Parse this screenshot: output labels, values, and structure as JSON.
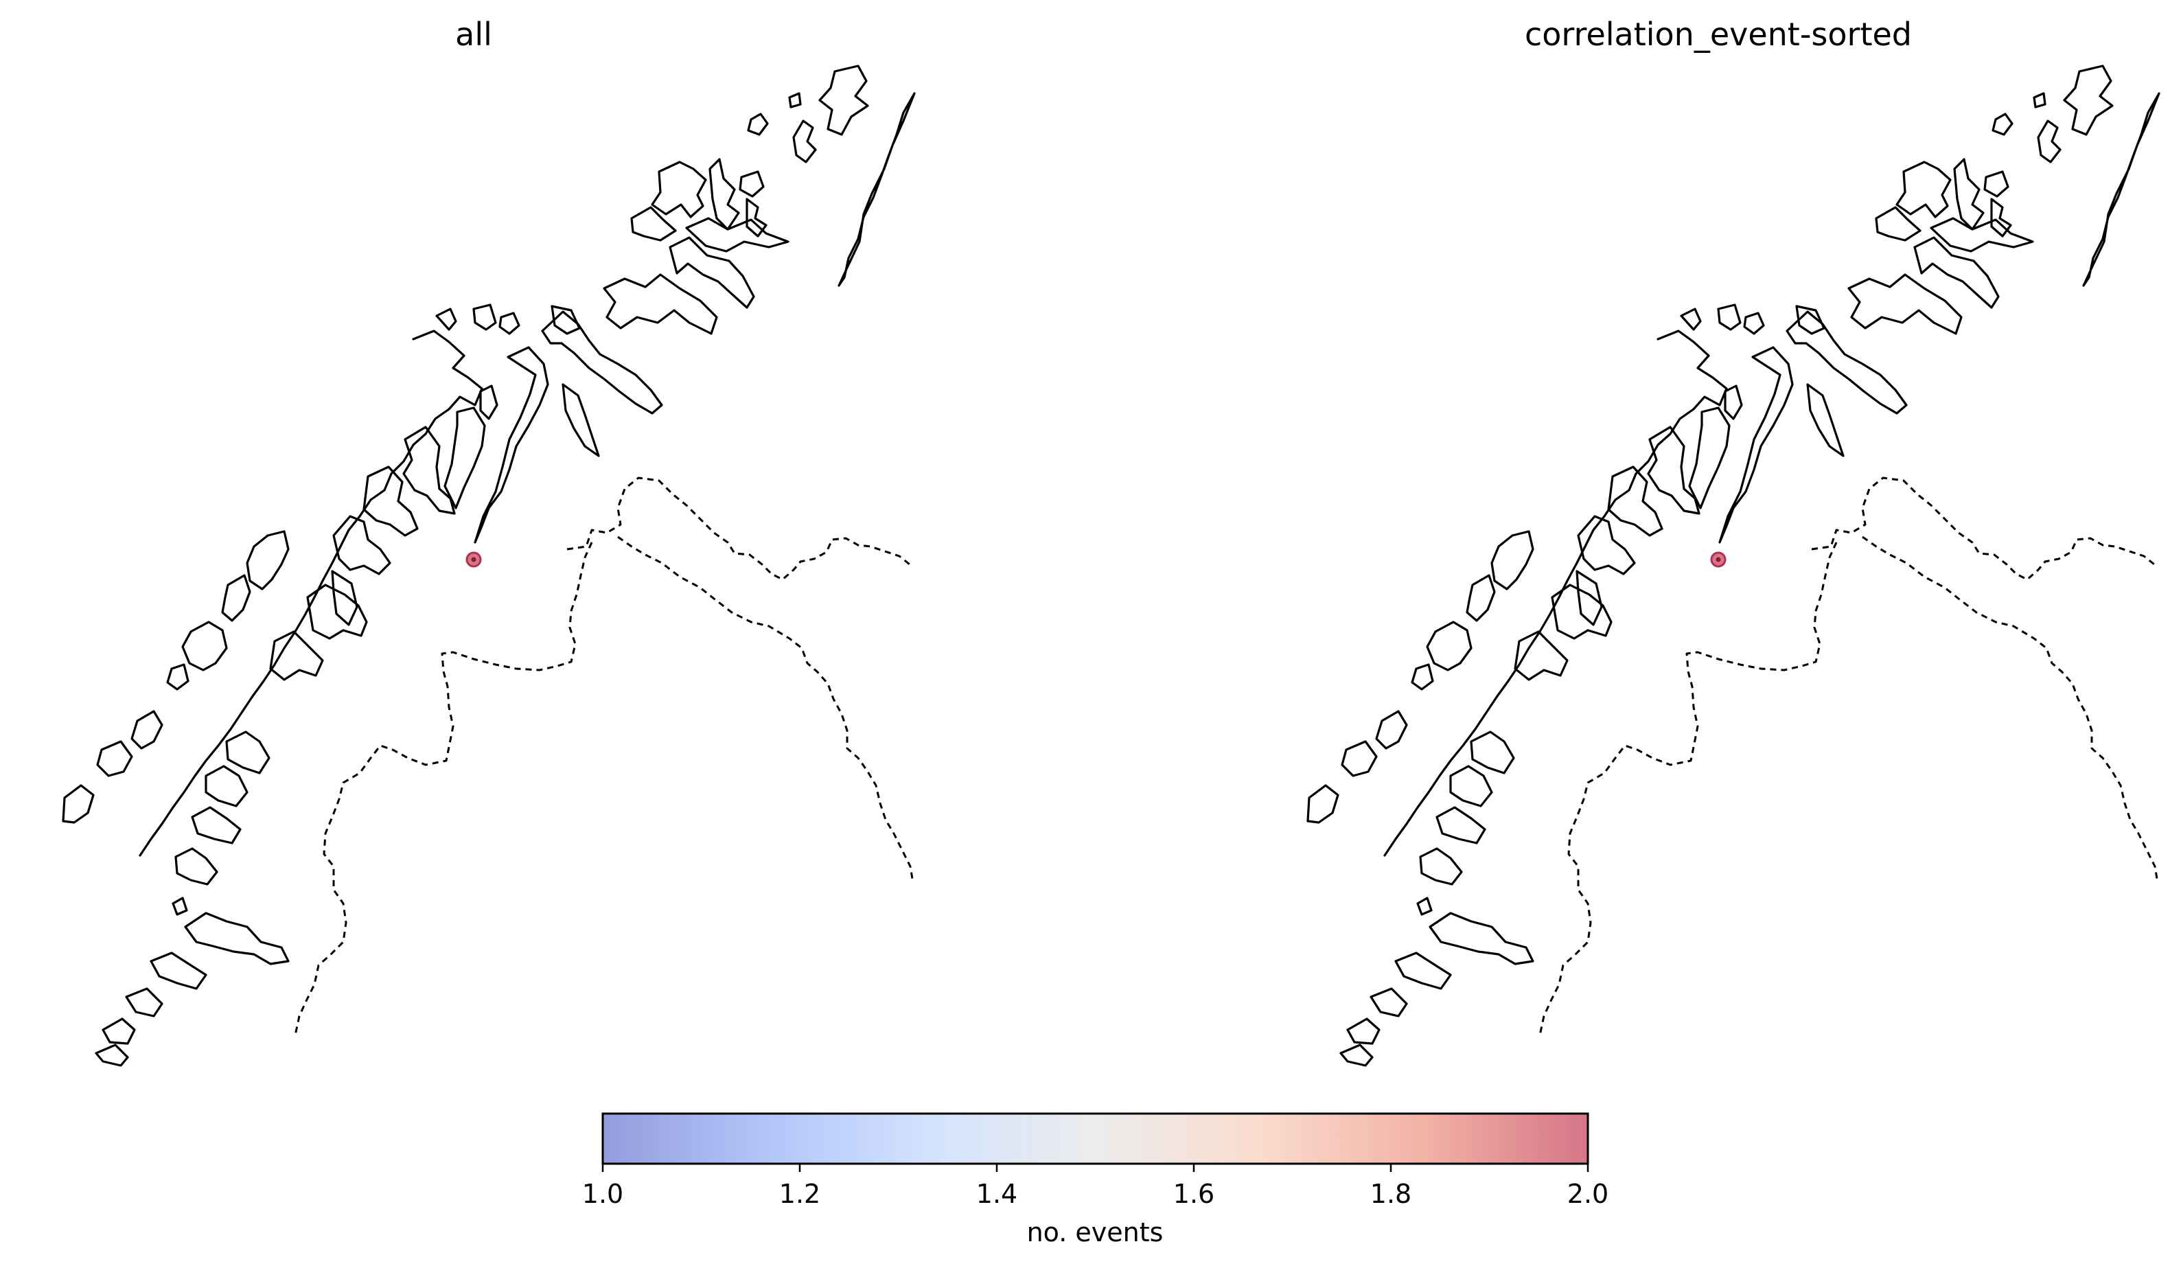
{
  "panels": [
    {
      "title": "all",
      "events": [
        {
          "lon": 17.9,
          "lat": 68.1,
          "count": 2
        }
      ]
    },
    {
      "title": "correlation_event-sorted",
      "events": [
        {
          "lon": 17.9,
          "lat": 68.1,
          "count": 2
        }
      ]
    }
  ],
  "colorbar": {
    "label": "no. events",
    "min": 1.0,
    "max": 2.0,
    "ticks": [
      "1.0",
      "1.2",
      "1.4",
      "1.6",
      "1.8",
      "2.0"
    ],
    "colormap": "coolwarm",
    "alpha": 0.6,
    "colors": [
      "#3b4cc0",
      "#7396f5",
      "#b0cbfc",
      "#dcdddd",
      "#f6bfa6",
      "#e7745b",
      "#b40426"
    ]
  },
  "map_features": {
    "coastline_color": "#000000",
    "border_style": "dashed",
    "marker_color": "#c94862"
  }
}
